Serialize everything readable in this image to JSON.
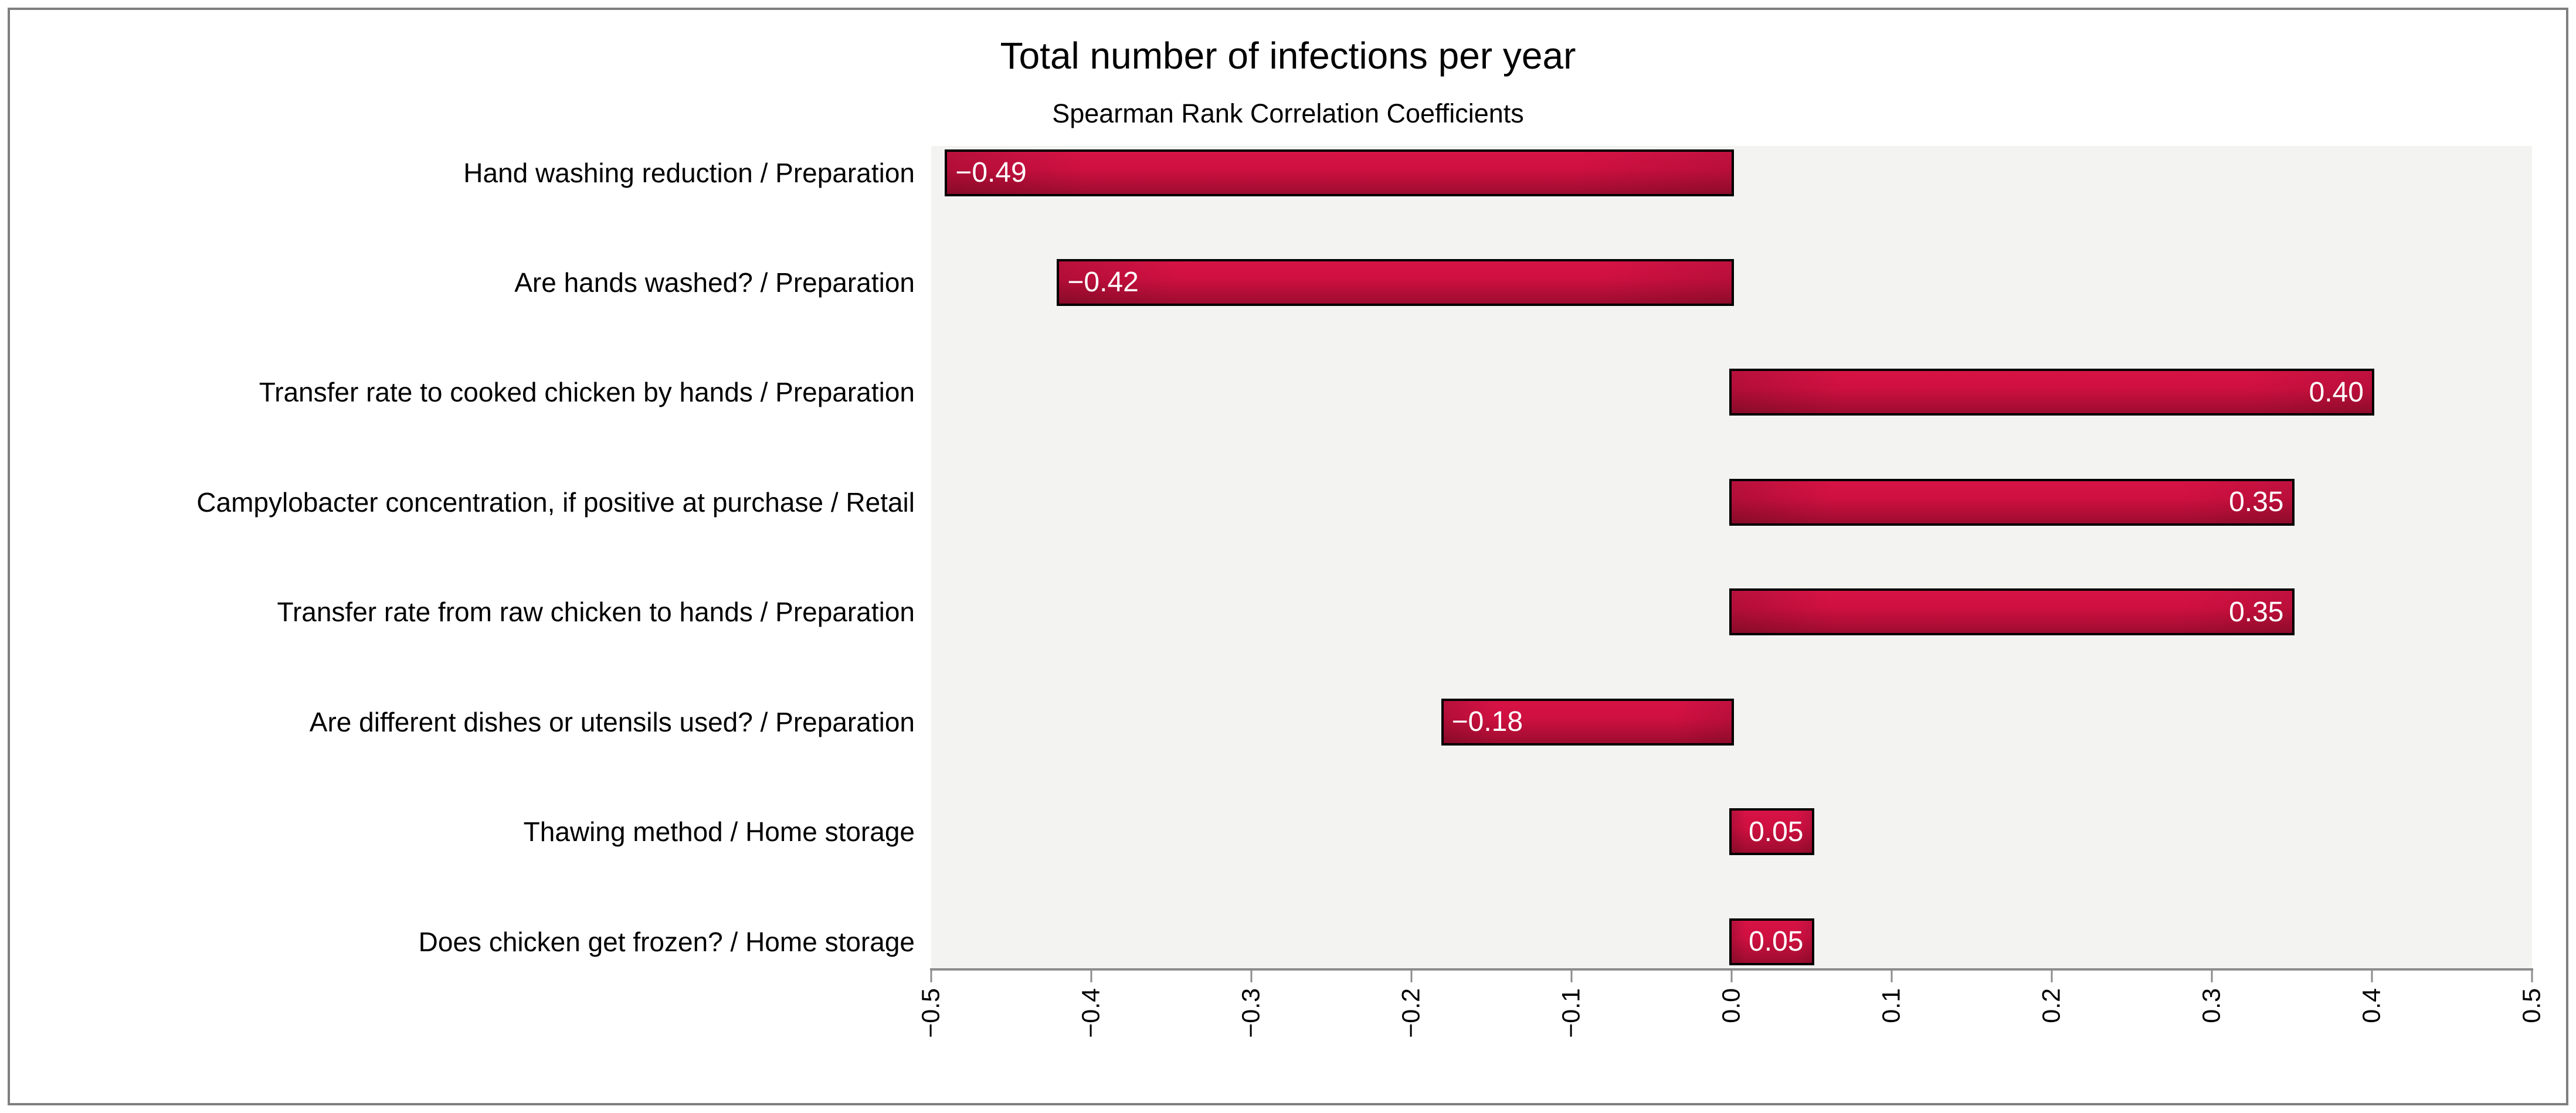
{
  "header": {
    "title": "Total number of infections per year",
    "subtitle": "Spearman Rank Correlation Coefficients"
  },
  "colors": {
    "bar_top": "#d61345",
    "bar_mid": "#cf1040",
    "bar_bottom": "#9e0c2f",
    "bar_border": "#000000",
    "value_label": "#ffffff",
    "wall": "#f3f3f2",
    "axis": "#8c8c8c",
    "frame_border": "#7f7f7f",
    "text": "#000000"
  },
  "chart_data": {
    "type": "bar",
    "orientation": "horizontal",
    "title": "Total number of infections per year",
    "subtitle": "Spearman Rank Correlation Coefficients",
    "categories": [
      "Hand washing reduction / Preparation",
      "Are hands washed? / Preparation",
      "Transfer rate to cooked chicken by hands / Preparation",
      "Campylobacter concentration, if positive at purchase / Retail",
      "Transfer rate from raw chicken to hands / Preparation",
      "Are different dishes or utensils used? / Preparation",
      "Thawing method / Home storage",
      "Does chicken get frozen? / Home storage"
    ],
    "values": [
      -0.49,
      -0.42,
      0.4,
      0.35,
      0.35,
      -0.18,
      0.05,
      0.05
    ],
    "value_labels": [
      "−0.49",
      "−0.42",
      "0.40",
      "0.35",
      "0.35",
      "−0.18",
      "0.05",
      "0.05"
    ],
    "xlabel": "",
    "ylabel": "",
    "xlim": [
      -0.5,
      0.5
    ],
    "xticks": [
      -0.5,
      -0.4,
      -0.3,
      -0.2,
      -0.1,
      0.0,
      0.1,
      0.2,
      0.3,
      0.4,
      0.5
    ],
    "xtick_labels": [
      "−0.5",
      "−0.4",
      "−0.3",
      "−0.2",
      "−0.1",
      "0.0",
      "0.1",
      "0.2",
      "0.3",
      "0.4",
      "0.5"
    ],
    "grid": false,
    "legend": false,
    "value_label_position": "inside-end"
  }
}
